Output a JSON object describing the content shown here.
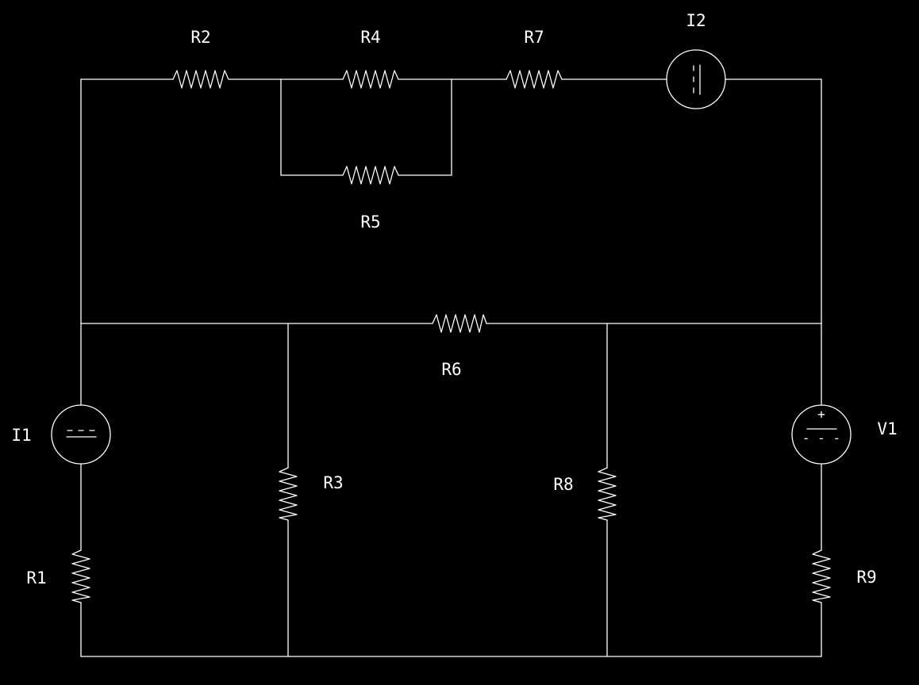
{
  "colors": {
    "background": "#000000",
    "stroke": "#ffffff"
  },
  "components": {
    "R1": "R1",
    "R2": "R2",
    "R3": "R3",
    "R4": "R4",
    "R5": "R5",
    "R6": "R6",
    "R7": "R7",
    "R8": "R8",
    "R9": "R9",
    "I1": "I1",
    "I2": "I2",
    "V1": "V1"
  },
  "symbols": {
    "plus": "+",
    "minus": "- - -"
  }
}
